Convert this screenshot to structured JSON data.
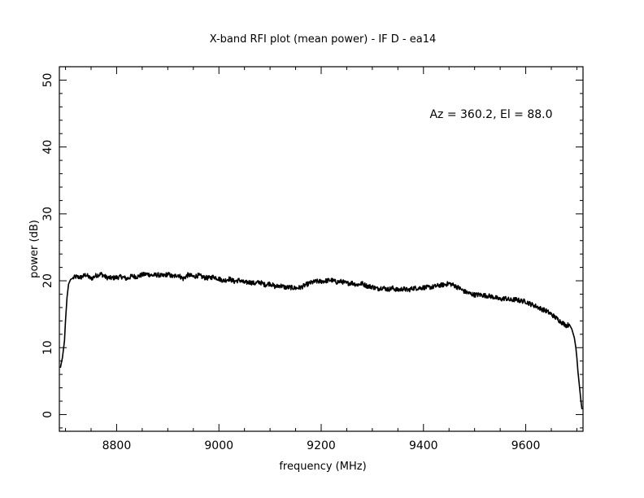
{
  "chart_data": {
    "type": "line",
    "title": "X-band RFI plot (mean power) - IF D - ea14",
    "xlabel": "frequency (MHz)",
    "ylabel": "power (dB)",
    "annotation": "Az = 360.2, El = 88.0",
    "xlim": [
      8688,
      9712
    ],
    "ylim": [
      -2.5,
      52
    ],
    "xticks": [
      8800,
      9000,
      9200,
      9400,
      9600
    ],
    "xtick_labels": [
      "8800",
      "9000",
      "9200",
      "9400",
      "9600"
    ],
    "yticks": [
      0,
      10,
      20,
      30,
      40,
      50
    ],
    "ytick_labels": [
      "0",
      "10",
      "20",
      "30",
      "40",
      "50"
    ],
    "grid": false,
    "legend": "none",
    "line_color": "#000000",
    "series": [
      {
        "x": [
          8690,
          8694,
          8698,
          8700,
          8703,
          8706,
          8710,
          8715,
          8720,
          8730,
          8740,
          8750,
          8760,
          8770,
          8780,
          8790,
          8800,
          8810,
          8820,
          8830,
          8840,
          8850,
          8860,
          8870,
          8880,
          8890,
          8900,
          8910,
          8920,
          8930,
          8940,
          8950,
          8960,
          8970,
          8980,
          8990,
          9000,
          9010,
          9020,
          9030,
          9040,
          9050,
          9060,
          9070,
          9080,
          9090,
          9100,
          9110,
          9120,
          9130,
          9140,
          9150,
          9160,
          9170,
          9180,
          9190,
          9200,
          9210,
          9220,
          9230,
          9240,
          9250,
          9260,
          9270,
          9280,
          9290,
          9300,
          9310,
          9320,
          9330,
          9340,
          9350,
          9360,
          9370,
          9380,
          9390,
          9400,
          9410,
          9420,
          9430,
          9440,
          9450,
          9460,
          9470,
          9480,
          9490,
          9500,
          9510,
          9520,
          9530,
          9540,
          9550,
          9560,
          9570,
          9580,
          9590,
          9600,
          9610,
          9620,
          9630,
          9640,
          9650,
          9660,
          9670,
          9680,
          9685,
          9690,
          9695,
          9698,
          9700,
          9702,
          9704,
          9706,
          9708,
          9710
        ],
        "y": [
          7.0,
          8.5,
          11.0,
          14.0,
          17.5,
          19.5,
          20.2,
          20.4,
          20.6,
          20.5,
          20.9,
          20.3,
          20.8,
          21.0,
          20.5,
          20.4,
          20.5,
          20.6,
          20.3,
          20.7,
          20.6,
          20.9,
          21.0,
          20.8,
          20.9,
          20.7,
          21.0,
          20.6,
          20.9,
          20.3,
          20.9,
          20.6,
          20.8,
          20.5,
          20.4,
          20.6,
          20.3,
          20.0,
          20.3,
          19.9,
          20.1,
          19.7,
          19.8,
          19.6,
          19.8,
          19.4,
          19.6,
          19.1,
          19.3,
          19.0,
          19.0,
          18.9,
          19.0,
          19.4,
          19.7,
          19.9,
          19.9,
          20.0,
          20.1,
          19.8,
          19.9,
          19.6,
          19.7,
          19.4,
          19.6,
          19.2,
          19.1,
          18.8,
          19.0,
          18.7,
          18.9,
          18.6,
          18.8,
          18.6,
          18.9,
          18.9,
          19.0,
          19.0,
          19.1,
          19.3,
          19.4,
          19.6,
          19.3,
          18.9,
          18.4,
          18.1,
          17.9,
          17.9,
          17.8,
          17.7,
          17.5,
          17.2,
          17.4,
          17.1,
          17.2,
          17.0,
          16.9,
          16.5,
          16.2,
          15.8,
          15.5,
          15.0,
          14.4,
          13.8,
          13.3,
          13.5,
          12.8,
          11.5,
          10.0,
          8.5,
          6.5,
          5.0,
          3.5,
          2.0,
          0.8
        ]
      }
    ]
  }
}
